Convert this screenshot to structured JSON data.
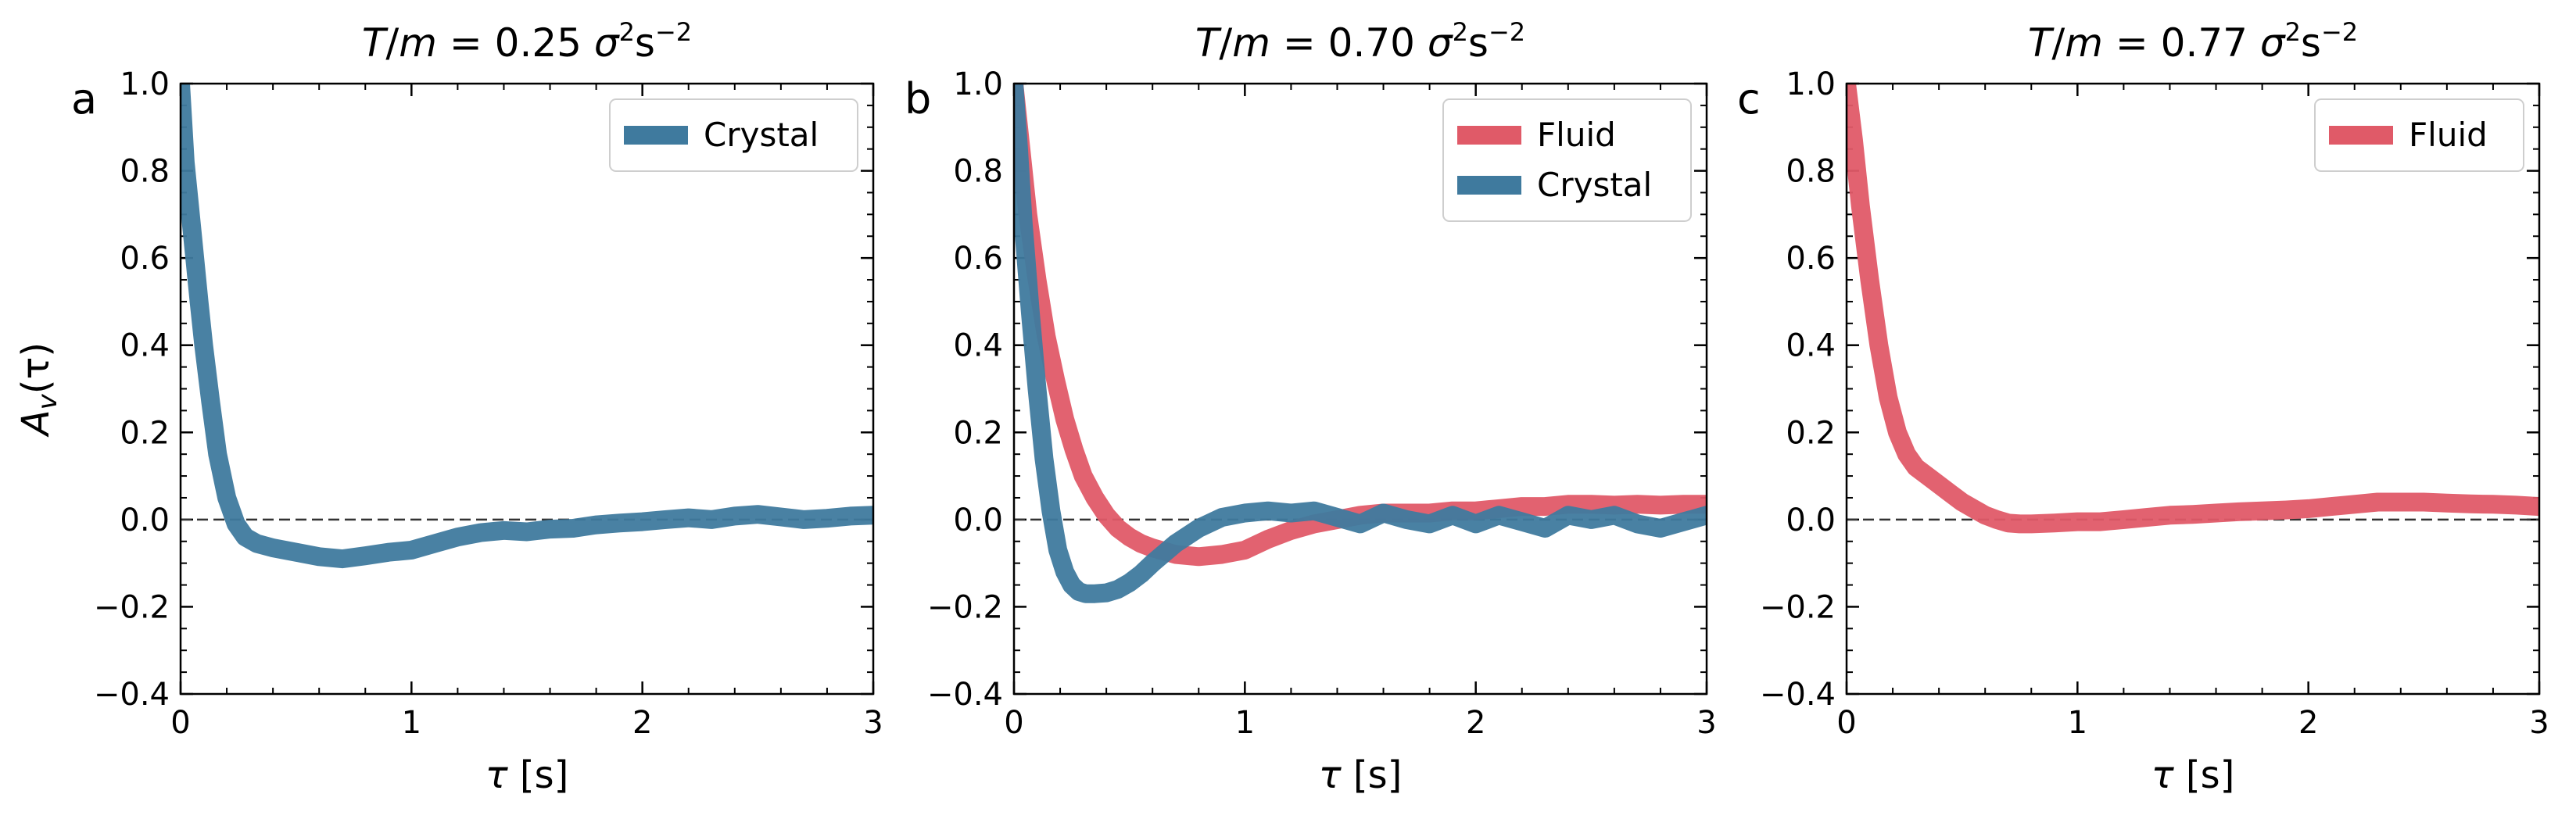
{
  "chart_data": [
    {
      "type": "line",
      "panel_label": "a",
      "title": {
        "lhs": "T",
        "sep": "/",
        "lhs2": "m",
        "eq": " = 0.25 ",
        "sym": "σ",
        "sup1": "2",
        "unit": "s",
        "sup2": "−2"
      },
      "xlabel": {
        "sym": "τ",
        "unit": " [s]"
      },
      "ylabel": {
        "sym": "A",
        "sub": "v",
        "arg": "(τ)"
      },
      "xlim": [
        0,
        3
      ],
      "ylim": [
        -0.4,
        1.0
      ],
      "xticks": [
        "0",
        "1",
        "2",
        "3"
      ],
      "yticks": [
        "−0.4",
        "−0.2",
        "0.0",
        "0.2",
        "0.4",
        "0.6",
        "0.8",
        "1.0"
      ],
      "reference_line": 0.0,
      "legend": "top-right",
      "series": [
        {
          "name": "Crystal",
          "color": "#3f7a9e",
          "x": [
            0,
            0.02,
            0.05,
            0.08,
            0.1,
            0.13,
            0.16,
            0.2,
            0.24,
            0.28,
            0.33,
            0.4,
            0.5,
            0.6,
            0.7,
            0.8,
            0.9,
            1.0,
            1.1,
            1.2,
            1.3,
            1.4,
            1.5,
            1.6,
            1.7,
            1.8,
            1.9,
            2.0,
            2.1,
            2.2,
            2.3,
            2.4,
            2.5,
            2.6,
            2.7,
            2.8,
            2.9,
            3.0
          ],
          "y": [
            1.0,
            0.82,
            0.66,
            0.5,
            0.4,
            0.27,
            0.15,
            0.05,
            -0.01,
            -0.04,
            -0.055,
            -0.065,
            -0.075,
            -0.085,
            -0.09,
            -0.083,
            -0.075,
            -0.07,
            -0.055,
            -0.04,
            -0.03,
            -0.025,
            -0.028,
            -0.022,
            -0.02,
            -0.012,
            -0.008,
            -0.005,
            0.0,
            0.004,
            0.0,
            0.008,
            0.012,
            0.006,
            0.0,
            0.003,
            0.008,
            0.01
          ]
        }
      ]
    },
    {
      "type": "line",
      "panel_label": "b",
      "title": {
        "lhs": "T",
        "sep": "/",
        "lhs2": "m",
        "eq": " = 0.70 ",
        "sym": "σ",
        "sup1": "2",
        "unit": "s",
        "sup2": "−2"
      },
      "xlabel": {
        "sym": "τ",
        "unit": " [s]"
      },
      "ylabel": {
        "sym": "",
        "sub": "",
        "arg": ""
      },
      "xlim": [
        0,
        3
      ],
      "ylim": [
        -0.4,
        1.0
      ],
      "xticks": [
        "0",
        "1",
        "2",
        "3"
      ],
      "yticks": [
        "−0.4",
        "−0.2",
        "0.0",
        "0.2",
        "0.4",
        "0.6",
        "0.8",
        "1.0"
      ],
      "reference_line": 0.0,
      "legend": "top-right",
      "series": [
        {
          "name": "Fluid",
          "color": "#e05a68",
          "x": [
            0,
            0.03,
            0.06,
            0.1,
            0.14,
            0.18,
            0.22,
            0.26,
            0.3,
            0.35,
            0.4,
            0.45,
            0.5,
            0.55,
            0.6,
            0.7,
            0.8,
            0.9,
            1.0,
            1.1,
            1.2,
            1.3,
            1.4,
            1.5,
            1.6,
            1.7,
            1.8,
            1.9,
            2.0,
            2.1,
            2.2,
            2.3,
            2.4,
            2.5,
            2.6,
            2.7,
            2.8,
            2.9,
            3.0
          ],
          "y": [
            1.0,
            0.85,
            0.7,
            0.55,
            0.42,
            0.32,
            0.23,
            0.16,
            0.1,
            0.05,
            0.01,
            -0.02,
            -0.04,
            -0.055,
            -0.065,
            -0.08,
            -0.085,
            -0.08,
            -0.07,
            -0.045,
            -0.025,
            -0.01,
            0.0,
            0.01,
            0.015,
            0.015,
            0.015,
            0.02,
            0.02,
            0.025,
            0.03,
            0.03,
            0.035,
            0.035,
            0.033,
            0.035,
            0.033,
            0.035,
            0.035
          ]
        },
        {
          "name": "Crystal",
          "color": "#3f7a9e",
          "x": [
            0,
            0.02,
            0.04,
            0.07,
            0.1,
            0.13,
            0.16,
            0.19,
            0.22,
            0.25,
            0.28,
            0.31,
            0.35,
            0.4,
            0.45,
            0.5,
            0.55,
            0.6,
            0.7,
            0.8,
            0.9,
            1.0,
            1.1,
            1.2,
            1.3,
            1.4,
            1.5,
            1.6,
            1.7,
            1.8,
            1.9,
            2.0,
            2.1,
            2.2,
            2.3,
            2.4,
            2.5,
            2.6,
            2.7,
            2.8,
            2.9,
            3.0
          ],
          "y": [
            1.0,
            0.85,
            0.68,
            0.48,
            0.3,
            0.14,
            0.02,
            -0.07,
            -0.12,
            -0.15,
            -0.165,
            -0.17,
            -0.17,
            -0.168,
            -0.16,
            -0.145,
            -0.125,
            -0.1,
            -0.055,
            -0.02,
            0.005,
            0.015,
            0.02,
            0.015,
            0.02,
            0.005,
            -0.01,
            0.015,
            0.0,
            -0.01,
            0.01,
            -0.01,
            0.01,
            -0.005,
            -0.02,
            0.01,
            0.0,
            0.01,
            -0.01,
            -0.02,
            -0.005,
            0.01
          ]
        }
      ]
    },
    {
      "type": "line",
      "panel_label": "c",
      "title": {
        "lhs": "T",
        "sep": "/",
        "lhs2": "m",
        "eq": " = 0.77 ",
        "sym": "σ",
        "sup1": "2",
        "unit": "s",
        "sup2": "−2"
      },
      "xlabel": {
        "sym": "τ",
        "unit": " [s]"
      },
      "ylabel": {
        "sym": "",
        "sub": "",
        "arg": ""
      },
      "xlim": [
        0,
        3
      ],
      "ylim": [
        -0.4,
        1.0
      ],
      "xticks": [
        "0",
        "1",
        "2",
        "3"
      ],
      "yticks": [
        "−0.4",
        "−0.2",
        "0.0",
        "0.2",
        "0.4",
        "0.6",
        "0.8",
        "1.0"
      ],
      "reference_line": 0.0,
      "legend": "top-right",
      "series": [
        {
          "name": "Fluid",
          "color": "#e05a68",
          "x": [
            0,
            0.03,
            0.06,
            0.1,
            0.14,
            0.18,
            0.22,
            0.26,
            0.3,
            0.35,
            0.4,
            0.45,
            0.5,
            0.55,
            0.6,
            0.65,
            0.7,
            0.75,
            0.8,
            0.9,
            1.0,
            1.1,
            1.2,
            1.3,
            1.4,
            1.5,
            1.6,
            1.7,
            1.8,
            1.9,
            2.0,
            2.1,
            2.2,
            2.3,
            2.4,
            2.5,
            2.6,
            2.7,
            2.8,
            2.9,
            3.0
          ],
          "y": [
            1.0,
            0.87,
            0.72,
            0.55,
            0.4,
            0.28,
            0.2,
            0.15,
            0.12,
            0.1,
            0.08,
            0.06,
            0.04,
            0.025,
            0.01,
            0.0,
            -0.008,
            -0.01,
            -0.01,
            -0.008,
            -0.005,
            -0.005,
            0.0,
            0.005,
            0.01,
            0.012,
            0.015,
            0.018,
            0.02,
            0.022,
            0.025,
            0.03,
            0.035,
            0.04,
            0.04,
            0.04,
            0.038,
            0.036,
            0.035,
            0.033,
            0.03
          ]
        }
      ]
    }
  ]
}
